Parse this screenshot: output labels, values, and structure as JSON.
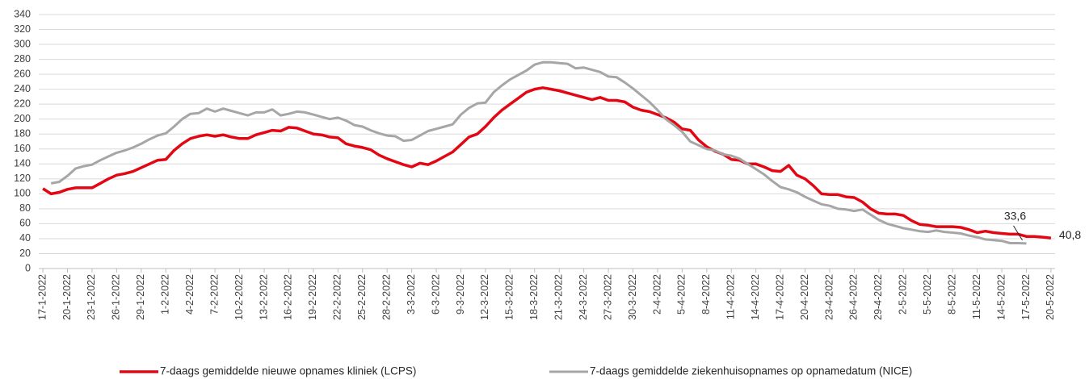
{
  "chart_data": {
    "type": "line",
    "categories": [
      "17-1-2022",
      null,
      null,
      "20-1-2022",
      null,
      null,
      "23-1-2022",
      null,
      null,
      "26-1-2022",
      null,
      null,
      "29-1-2022",
      null,
      null,
      "1-2-2022",
      null,
      null,
      "4-2-2022",
      null,
      null,
      "7-2-2022",
      null,
      null,
      "10-2-2022",
      null,
      null,
      "13-2-2022",
      null,
      null,
      "16-2-2022",
      null,
      null,
      "19-2-2022",
      null,
      null,
      "22-2-2022",
      null,
      null,
      "25-2-2022",
      null,
      null,
      "28-2-2022",
      null,
      null,
      "3-3-2022",
      null,
      null,
      "6-3-2022",
      null,
      null,
      "9-3-2022",
      null,
      null,
      "12-3-2022",
      null,
      null,
      "15-3-2022",
      null,
      null,
      "18-3-2022",
      null,
      null,
      "21-3-2022",
      null,
      null,
      "24-3-2022",
      null,
      null,
      "27-3-2022",
      null,
      null,
      "30-3-2022",
      null,
      null,
      "2-4-2022",
      null,
      null,
      "5-4-2022",
      null,
      null,
      "8-4-2022",
      null,
      null,
      "11-4-2022",
      null,
      null,
      "14-4-2022",
      null,
      null,
      "17-4-2022",
      null,
      null,
      "20-4-2022",
      null,
      null,
      "23-4-2022",
      null,
      null,
      "26-4-2022",
      null,
      null,
      "29-4-2022",
      null,
      null,
      "2-5-2022",
      null,
      null,
      "5-5-2022",
      null,
      null,
      "8-5-2022",
      null,
      null,
      "11-5-2022",
      null,
      null,
      "14-5-2022",
      null,
      null,
      "17-5-2022",
      null,
      null,
      "20-5-2022"
    ],
    "series": [
      {
        "name": "7-daags gemiddelde nieuwe opnames kliniek (LCPS)",
        "color": "#e30613",
        "values": [
          107,
          100,
          102,
          106,
          108,
          108,
          108,
          114,
          120,
          125,
          127,
          130,
          135,
          140,
          145,
          146,
          158,
          167,
          174,
          177,
          179,
          177,
          179,
          176,
          174,
          174,
          179,
          182,
          185,
          184,
          189,
          188,
          184,
          180,
          179,
          176,
          175,
          167,
          164,
          162,
          159,
          152,
          147,
          143,
          139,
          136,
          141,
          139,
          144,
          150,
          156,
          166,
          176,
          180,
          190,
          202,
          212,
          220,
          228,
          236,
          240,
          242,
          240,
          238,
          235,
          232,
          229,
          226,
          229,
          225,
          225,
          223,
          216,
          212,
          210,
          206,
          202,
          196,
          187,
          185,
          172,
          163,
          157,
          153,
          146,
          145,
          140,
          140,
          136,
          131,
          130,
          138,
          125,
          120,
          111,
          100,
          99,
          99,
          96,
          95,
          89,
          80,
          74,
          73,
          73,
          71,
          64,
          59,
          58,
          56,
          56,
          56,
          55,
          52,
          48,
          50,
          48,
          47,
          46,
          46,
          43,
          43,
          42,
          40.8
        ],
        "value_labels": [
          null,
          null,
          null,
          null,
          null,
          null,
          null,
          null,
          null,
          null,
          null,
          null,
          null,
          null,
          null,
          null,
          null,
          null,
          null,
          null,
          null,
          null,
          null,
          null,
          null,
          null,
          null,
          null,
          null,
          null,
          null,
          null,
          null,
          null,
          null,
          null,
          null,
          null,
          null,
          null,
          null,
          null,
          null,
          null,
          null,
          null,
          null,
          null,
          null,
          null,
          null,
          null,
          null,
          null,
          null,
          null,
          null,
          null,
          null,
          null,
          null,
          null,
          null,
          null,
          null,
          null,
          null,
          null,
          null,
          null,
          null,
          null,
          null,
          null,
          null,
          null,
          null,
          null,
          null,
          null,
          null,
          null,
          null,
          null,
          null,
          null,
          null,
          null,
          null,
          null,
          null,
          null,
          null,
          null,
          null,
          null,
          null,
          null,
          null,
          null,
          null,
          null,
          null,
          null,
          null,
          null,
          null,
          null,
          null,
          null,
          null,
          null,
          null,
          null,
          null,
          null,
          null,
          null,
          null,
          null,
          null,
          null,
          null,
          "40,8"
        ]
      },
      {
        "name": "7-daags gemiddelde ziekenhuisopnames op opnamedatum (NICE)",
        "color": "#a6a6a6",
        "values": [
          null,
          114,
          116,
          124,
          134,
          137,
          139,
          145,
          150,
          155,
          158,
          162,
          167,
          173,
          178,
          181,
          190,
          200,
          207,
          208,
          214,
          210,
          214,
          211,
          208,
          205,
          209,
          209,
          213,
          205,
          207,
          210,
          209,
          206,
          203,
          200,
          202,
          198,
          192,
          190,
          185,
          181,
          178,
          177,
          171,
          172,
          178,
          184,
          187,
          190,
          193,
          206,
          215,
          221,
          222,
          236,
          245,
          253,
          259,
          265,
          273,
          276,
          276,
          275,
          274,
          268,
          269,
          266,
          263,
          257,
          256,
          249,
          241,
          232,
          223,
          212,
          200,
          192,
          183,
          170,
          165,
          160,
          158,
          153,
          151,
          147,
          140,
          133,
          126,
          117,
          109,
          106,
          102,
          96,
          91,
          86,
          84,
          80,
          79,
          77,
          79,
          72,
          65,
          60,
          57,
          54,
          52,
          50,
          49,
          51,
          49,
          48,
          47,
          44,
          42,
          39,
          38,
          37,
          34,
          34,
          33.6,
          null,
          null,
          null
        ],
        "value_labels": [
          null,
          null,
          null,
          null,
          null,
          null,
          null,
          null,
          null,
          null,
          null,
          null,
          null,
          null,
          null,
          null,
          null,
          null,
          null,
          null,
          null,
          null,
          null,
          null,
          null,
          null,
          null,
          null,
          null,
          null,
          null,
          null,
          null,
          null,
          null,
          null,
          null,
          null,
          null,
          null,
          null,
          null,
          null,
          null,
          null,
          null,
          null,
          null,
          null,
          null,
          null,
          null,
          null,
          null,
          null,
          null,
          null,
          null,
          null,
          null,
          null,
          null,
          null,
          null,
          null,
          null,
          null,
          null,
          null,
          null,
          null,
          null,
          null,
          null,
          null,
          null,
          null,
          null,
          null,
          null,
          null,
          null,
          null,
          null,
          null,
          null,
          null,
          null,
          null,
          null,
          null,
          null,
          null,
          null,
          null,
          null,
          null,
          null,
          null,
          null,
          null,
          null,
          null,
          null,
          null,
          null,
          null,
          null,
          null,
          null,
          null,
          null,
          null,
          null,
          null,
          null,
          null,
          null,
          null,
          null,
          "33,6",
          null,
          null,
          null
        ]
      }
    ],
    "ylim": [
      0,
      340
    ],
    "yticks": [
      0,
      20,
      40,
      60,
      80,
      100,
      120,
      140,
      160,
      180,
      200,
      220,
      240,
      260,
      280,
      300,
      320,
      340
    ],
    "grid": true,
    "legend": "bottom"
  }
}
